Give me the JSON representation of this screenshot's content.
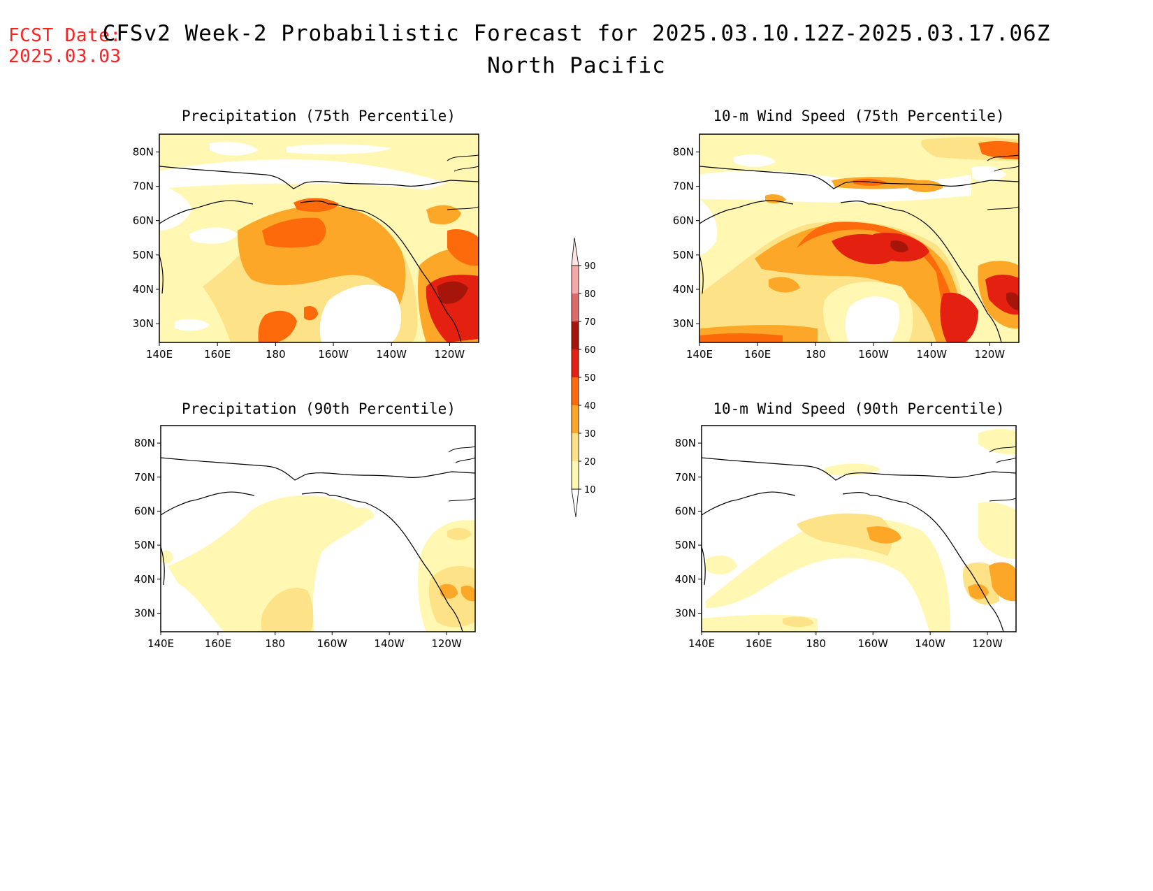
{
  "header": {
    "fcst_label": "FCST Date:",
    "fcst_date": "2025.03.03",
    "title": "CFSv2 Week-2 Probabilistic Forecast for 2025.03.10.12Z-2025.03.17.06Z",
    "subtitle": "North Pacific"
  },
  "colors": {
    "accent_text": "#ff2020",
    "scale": [
      "#ffffff",
      "#fff7b2",
      "#fde287",
      "#fca728",
      "#fd6a0c",
      "#e42010",
      "#a6150a",
      "#dc6a6a",
      "#f4a8a8",
      "#fde4e4"
    ]
  },
  "colorbar": {
    "levels": [
      "10",
      "20",
      "30",
      "40",
      "50",
      "60",
      "70",
      "80",
      "90"
    ]
  },
  "axes": {
    "lon_labels": [
      "140E",
      "160E",
      "180",
      "160W",
      "140W",
      "120W"
    ],
    "lat_labels": [
      "80N",
      "70N",
      "60N",
      "50N",
      "40N",
      "30N"
    ]
  },
  "panels": [
    {
      "title": "Precipitation (75th Percentile)",
      "id": "precip75"
    },
    {
      "title": "10-m Wind Speed (75th Percentile)",
      "id": "wind75"
    },
    {
      "title": "Precipitation (90th Percentile)",
      "id": "precip90"
    },
    {
      "title": "10-m Wind Speed (90th Percentile)",
      "id": "wind90"
    }
  ]
}
